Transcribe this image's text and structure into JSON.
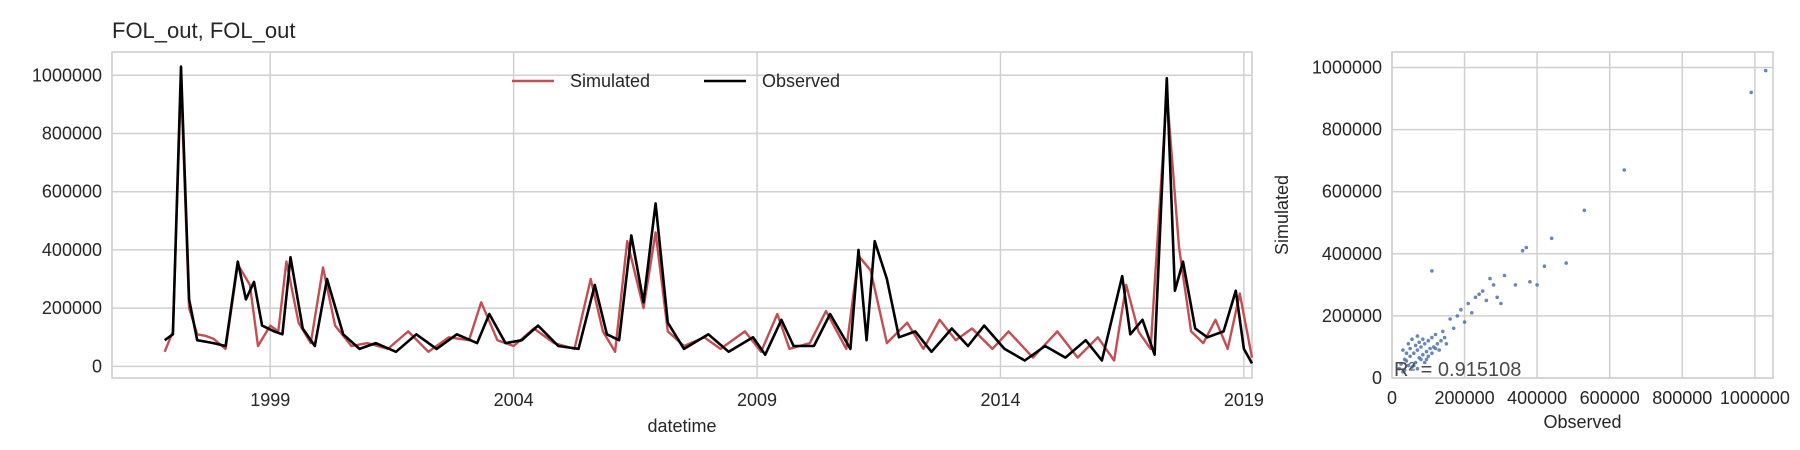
{
  "chart_data": [
    {
      "type": "line",
      "title": "FOL_out, FOL_out",
      "xlabel": "datetime",
      "ylabel": "",
      "x_range": [
        "1995-10",
        "2019-03"
      ],
      "ylim": [
        -40000,
        1080000
      ],
      "xticks": [
        "1999",
        "2004",
        "2009",
        "2014",
        "2019"
      ],
      "yticks": [
        "0",
        "200000",
        "400000",
        "600000",
        "800000",
        "1000000"
      ],
      "grid": true,
      "legend": {
        "placement": "upper-center",
        "entries": [
          "Simulated",
          "Observed"
        ]
      },
      "series": [
        {
          "name": "Simulated",
          "color": "#c44e52",
          "points": [
            [
              "1996-11",
              50000
            ],
            [
              "1997-01",
              120000
            ],
            [
              "1997-03",
              980000
            ],
            [
              "1997-05",
              200000
            ],
            [
              "1997-07",
              110000
            ],
            [
              "1997-09",
              105000
            ],
            [
              "1997-11",
              95000
            ],
            [
              "1998-02",
              60000
            ],
            [
              "1998-05",
              350000
            ],
            [
              "1998-08",
              280000
            ],
            [
              "1998-10",
              70000
            ],
            [
              "1999-01",
              140000
            ],
            [
              "1999-03",
              120000
            ],
            [
              "1999-05",
              360000
            ],
            [
              "1999-08",
              150000
            ],
            [
              "1999-11",
              80000
            ],
            [
              "2000-02",
              340000
            ],
            [
              "2000-05",
              140000
            ],
            [
              "2000-09",
              70000
            ],
            [
              "2001-01",
              80000
            ],
            [
              "2001-06",
              60000
            ],
            [
              "2001-11",
              120000
            ],
            [
              "2002-04",
              50000
            ],
            [
              "2002-09",
              100000
            ],
            [
              "2003-02",
              90000
            ],
            [
              "2003-05",
              220000
            ],
            [
              "2003-09",
              90000
            ],
            [
              "2004-01",
              70000
            ],
            [
              "2004-06",
              130000
            ],
            [
              "2004-11",
              80000
            ],
            [
              "2005-04",
              60000
            ],
            [
              "2005-08",
              300000
            ],
            [
              "2005-11",
              120000
            ],
            [
              "2006-02",
              50000
            ],
            [
              "2006-05",
              430000
            ],
            [
              "2006-09",
              200000
            ],
            [
              "2006-12",
              460000
            ],
            [
              "2007-03",
              120000
            ],
            [
              "2007-07",
              70000
            ],
            [
              "2007-12",
              100000
            ],
            [
              "2008-04",
              60000
            ],
            [
              "2008-10",
              120000
            ],
            [
              "2009-02",
              50000
            ],
            [
              "2009-06",
              180000
            ],
            [
              "2009-09",
              60000
            ],
            [
              "2010-02",
              80000
            ],
            [
              "2010-06",
              190000
            ],
            [
              "2010-11",
              60000
            ],
            [
              "2011-02",
              380000
            ],
            [
              "2011-05",
              330000
            ],
            [
              "2011-09",
              80000
            ],
            [
              "2012-02",
              150000
            ],
            [
              "2012-06",
              60000
            ],
            [
              "2012-10",
              160000
            ],
            [
              "2013-02",
              90000
            ],
            [
              "2013-06",
              130000
            ],
            [
              "2013-11",
              60000
            ],
            [
              "2014-03",
              120000
            ],
            [
              "2014-09",
              30000
            ],
            [
              "2015-03",
              120000
            ],
            [
              "2015-08",
              30000
            ],
            [
              "2016-01",
              100000
            ],
            [
              "2016-05",
              20000
            ],
            [
              "2016-08",
              280000
            ],
            [
              "2016-11",
              120000
            ],
            [
              "2017-02",
              60000
            ],
            [
              "2017-06",
              940000
            ],
            [
              "2017-09",
              410000
            ],
            [
              "2017-12",
              120000
            ],
            [
              "2018-03",
              80000
            ],
            [
              "2018-06",
              160000
            ],
            [
              "2018-09",
              60000
            ],
            [
              "2018-12",
              250000
            ],
            [
              "2019-03",
              30000
            ]
          ]
        },
        {
          "name": "Observed",
          "color": "#000000",
          "points": [
            [
              "1996-11",
              90000
            ],
            [
              "1997-01",
              110000
            ],
            [
              "1997-03",
              1030000
            ],
            [
              "1997-05",
              230000
            ],
            [
              "1997-07",
              90000
            ],
            [
              "1997-09",
              85000
            ],
            [
              "1997-11",
              80000
            ],
            [
              "1998-02",
              70000
            ],
            [
              "1998-05",
              360000
            ],
            [
              "1998-07",
              230000
            ],
            [
              "1998-09",
              290000
            ],
            [
              "1998-11",
              140000
            ],
            [
              "1999-02",
              120000
            ],
            [
              "1999-04",
              110000
            ],
            [
              "1999-06",
              375000
            ],
            [
              "1999-09",
              130000
            ],
            [
              "1999-12",
              70000
            ],
            [
              "2000-03",
              300000
            ],
            [
              "2000-07",
              110000
            ],
            [
              "2000-11",
              60000
            ],
            [
              "2001-03",
              80000
            ],
            [
              "2001-08",
              50000
            ],
            [
              "2002-01",
              110000
            ],
            [
              "2002-06",
              60000
            ],
            [
              "2002-11",
              110000
            ],
            [
              "2003-04",
              80000
            ],
            [
              "2003-07",
              180000
            ],
            [
              "2003-11",
              80000
            ],
            [
              "2004-03",
              90000
            ],
            [
              "2004-07",
              140000
            ],
            [
              "2004-12",
              70000
            ],
            [
              "2005-05",
              60000
            ],
            [
              "2005-09",
              280000
            ],
            [
              "2005-12",
              110000
            ],
            [
              "2006-03",
              90000
            ],
            [
              "2006-06",
              450000
            ],
            [
              "2006-09",
              220000
            ],
            [
              "2006-12",
              560000
            ],
            [
              "2007-03",
              150000
            ],
            [
              "2007-07",
              60000
            ],
            [
              "2008-01",
              110000
            ],
            [
              "2008-06",
              50000
            ],
            [
              "2008-12",
              100000
            ],
            [
              "2009-03",
              40000
            ],
            [
              "2009-07",
              160000
            ],
            [
              "2009-10",
              70000
            ],
            [
              "2010-03",
              70000
            ],
            [
              "2010-07",
              180000
            ],
            [
              "2010-12",
              60000
            ],
            [
              "2011-02",
              400000
            ],
            [
              "2011-04",
              90000
            ],
            [
              "2011-06",
              430000
            ],
            [
              "2011-09",
              300000
            ],
            [
              "2011-12",
              100000
            ],
            [
              "2012-04",
              120000
            ],
            [
              "2012-08",
              50000
            ],
            [
              "2013-01",
              130000
            ],
            [
              "2013-05",
              70000
            ],
            [
              "2013-09",
              140000
            ],
            [
              "2014-02",
              60000
            ],
            [
              "2014-07",
              20000
            ],
            [
              "2014-12",
              70000
            ],
            [
              "2015-05",
              30000
            ],
            [
              "2015-10",
              90000
            ],
            [
              "2016-02",
              20000
            ],
            [
              "2016-07",
              310000
            ],
            [
              "2016-09",
              110000
            ],
            [
              "2016-12",
              160000
            ],
            [
              "2017-03",
              40000
            ],
            [
              "2017-06",
              990000
            ],
            [
              "2017-08",
              260000
            ],
            [
              "2017-10",
              360000
            ],
            [
              "2018-01",
              130000
            ],
            [
              "2018-04",
              100000
            ],
            [
              "2018-08",
              120000
            ],
            [
              "2018-11",
              260000
            ],
            [
              "2019-01",
              60000
            ],
            [
              "2019-03",
              10000
            ]
          ]
        }
      ]
    },
    {
      "type": "scatter",
      "xlabel": "Observed",
      "ylabel": "Simulated",
      "xlim": [
        0,
        1050000
      ],
      "ylim": [
        0,
        1050000
      ],
      "xticks": [
        "0",
        "200000",
        "400000",
        "600000",
        "800000",
        "1000000"
      ],
      "yticks": [
        "0",
        "200000",
        "400000",
        "600000",
        "800000",
        "1000000"
      ],
      "grid": true,
      "color": "#4c72b0",
      "annotation": "R² = 0.915108",
      "points": [
        [
          20000,
          30000
        ],
        [
          25000,
          45000
        ],
        [
          30000,
          20000
        ],
        [
          35000,
          60000
        ],
        [
          40000,
          55000
        ],
        [
          45000,
          40000
        ],
        [
          50000,
          70000
        ],
        [
          55000,
          35000
        ],
        [
          60000,
          80000
        ],
        [
          65000,
          50000
        ],
        [
          70000,
          90000
        ],
        [
          75000,
          65000
        ],
        [
          80000,
          100000
        ],
        [
          85000,
          75000
        ],
        [
          90000,
          110000
        ],
        [
          95000,
          85000
        ],
        [
          100000,
          120000
        ],
        [
          105000,
          95000
        ],
        [
          110000,
          130000
        ],
        [
          115000,
          100000
        ],
        [
          120000,
          140000
        ],
        [
          125000,
          110000
        ],
        [
          130000,
          90000
        ],
        [
          135000,
          120000
        ],
        [
          140000,
          150000
        ],
        [
          145000,
          130000
        ],
        [
          150000,
          110000
        ],
        [
          30000,
          90000
        ],
        [
          45000,
          110000
        ],
        [
          60000,
          40000
        ],
        [
          70000,
          30000
        ],
        [
          80000,
          60000
        ],
        [
          90000,
          50000
        ],
        [
          100000,
          70000
        ],
        [
          110000,
          80000
        ],
        [
          120000,
          95000
        ],
        [
          35000,
          25000
        ],
        [
          50000,
          95000
        ],
        [
          65000,
          105000
        ],
        [
          75000,
          115000
        ],
        [
          85000,
          125000
        ],
        [
          95000,
          60000
        ],
        [
          40000,
          80000
        ],
        [
          55000,
          125000
        ],
        [
          70000,
          135000
        ],
        [
          160000,
          190000
        ],
        [
          170000,
          160000
        ],
        [
          180000,
          200000
        ],
        [
          190000,
          220000
        ],
        [
          200000,
          180000
        ],
        [
          210000,
          240000
        ],
        [
          220000,
          210000
        ],
        [
          240000,
          270000
        ],
        [
          260000,
          250000
        ],
        [
          280000,
          300000
        ],
        [
          300000,
          240000
        ],
        [
          230000,
          260000
        ],
        [
          250000,
          280000
        ],
        [
          270000,
          320000
        ],
        [
          290000,
          260000
        ],
        [
          310000,
          330000
        ],
        [
          340000,
          300000
        ],
        [
          360000,
          410000
        ],
        [
          370000,
          420000
        ],
        [
          380000,
          310000
        ],
        [
          400000,
          300000
        ],
        [
          420000,
          360000
        ],
        [
          440000,
          450000
        ],
        [
          480000,
          370000
        ],
        [
          530000,
          540000
        ],
        [
          640000,
          670000
        ],
        [
          110000,
          345000
        ],
        [
          990000,
          920000
        ],
        [
          1030000,
          990000
        ]
      ]
    }
  ]
}
